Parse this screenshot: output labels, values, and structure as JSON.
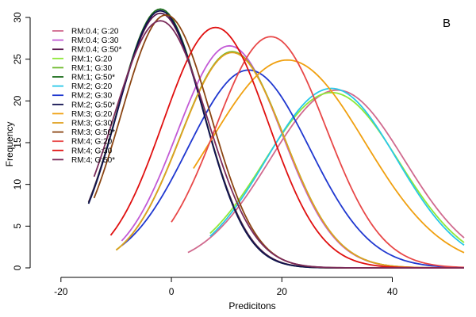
{
  "chart_data": {
    "type": "line",
    "panel_label": "B",
    "xlabel": "Predicitons",
    "ylabel": "Frequency",
    "xlim": [
      -25,
      53
    ],
    "ylim": [
      0,
      30
    ],
    "x_ticks": [
      -20,
      0,
      20,
      40
    ],
    "y_ticks": [
      0,
      5,
      10,
      15,
      20,
      25,
      30
    ],
    "grid": false,
    "legend_position": "top-left",
    "series": [
      {
        "name": "RM:0.4; G:20",
        "color": "#d06a8e",
        "x_range": [
          3,
          53
        ],
        "peak_x": 30,
        "peak_y": 21.3,
        "sd": 12.2
      },
      {
        "name": "RM:0.4; G:30",
        "color": "#c25ad6",
        "x_range": [
          -9,
          53
        ],
        "peak_x": 10.5,
        "peak_y": 26.6,
        "sd": 9.5
      },
      {
        "name": "RM:0.4; G:50*",
        "color": "#5a1a50",
        "x_range": [
          -15,
          53
        ],
        "peak_x": -2,
        "peak_y": 30.5,
        "sd": 7.9
      },
      {
        "name": "RM:1; G:20",
        "color": "#8fe838",
        "x_range": [
          7,
          53
        ],
        "peak_x": 29,
        "peak_y": 21.0,
        "sd": 12.2
      },
      {
        "name": "RM:1; G:30",
        "color": "#6db82a",
        "x_range": [
          -10,
          53
        ],
        "peak_x": 11,
        "peak_y": 25.9,
        "sd": 9.4
      },
      {
        "name": "RM:1; G:50*",
        "color": "#1a6b1a",
        "x_range": [
          -15,
          53
        ],
        "peak_x": -2,
        "peak_y": 31.0,
        "sd": 7.8
      },
      {
        "name": "RM:2; G:20",
        "color": "#28c8e8",
        "x_range": [
          7,
          53
        ],
        "peak_x": 29,
        "peak_y": 21.5,
        "sd": 11.8
      },
      {
        "name": "RM:2; G:30",
        "color": "#2038d0",
        "x_range": [
          -9,
          53
        ],
        "peak_x": 14,
        "peak_y": 23.7,
        "sd": 11.0
      },
      {
        "name": "RM:2; G:50*",
        "color": "#101050",
        "x_range": [
          -15,
          53
        ],
        "peak_x": -2,
        "peak_y": 30.8,
        "sd": 7.8
      },
      {
        "name": "RM:3; G:20",
        "color": "#f0a010",
        "x_range": [
          4,
          53
        ],
        "peak_x": 21,
        "peak_y": 24.9,
        "sd": 14.0
      },
      {
        "name": "RM:3; G:30",
        "color": "#e0a020",
        "x_range": [
          -10,
          53
        ],
        "peak_x": 11,
        "peak_y": 25.8,
        "sd": 9.4
      },
      {
        "name": "RM:3; G:50*",
        "color": "#8b4513",
        "x_range": [
          -14,
          53
        ],
        "peak_x": -1,
        "peak_y": 30.3,
        "sd": 8.1
      },
      {
        "name": "RM:4; G:20",
        "color": "#e84848",
        "x_range": [
          0,
          53
        ],
        "peak_x": 18,
        "peak_y": 27.7,
        "sd": 10.0
      },
      {
        "name": "RM:4; G:30",
        "color": "#e01010",
        "x_range": [
          -11,
          53
        ],
        "peak_x": 8,
        "peak_y": 28.8,
        "sd": 9.5
      },
      {
        "name": "RM:4; G:50*",
        "color": "#7a2a5a",
        "x_range": [
          -14,
          53
        ],
        "peak_x": -2,
        "peak_y": 29.6,
        "sd": 8.5
      }
    ]
  }
}
